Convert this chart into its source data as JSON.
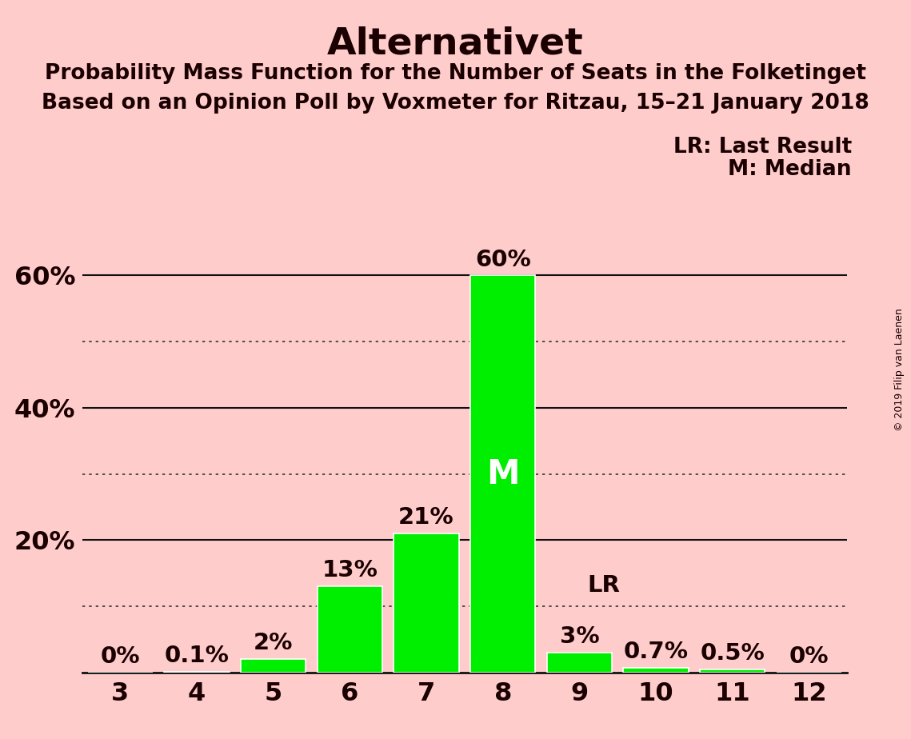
{
  "title": "Alternativet",
  "subtitle1": "Probability Mass Function for the Number of Seats in the Folketinget",
  "subtitle2": "Based on an Opinion Poll by Voxmeter for Ritzau, 15–21 January 2018",
  "copyright": "© 2019 Filip van Laenen",
  "categories": [
    3,
    4,
    5,
    6,
    7,
    8,
    9,
    10,
    11,
    12
  ],
  "values": [
    0.0,
    0.1,
    2.0,
    13.0,
    21.0,
    60.0,
    3.0,
    0.7,
    0.5,
    0.0
  ],
  "bar_color": "#00ee00",
  "background_color": "#ffcccc",
  "bar_edge_color": "#ffffff",
  "yticks": [
    0,
    20,
    40,
    60
  ],
  "ytick_labels": [
    "",
    "20%",
    "40%",
    "60%"
  ],
  "ylim": [
    0,
    67
  ],
  "xlim": [
    2.5,
    12.5
  ],
  "solid_yticks": [
    20,
    40,
    60
  ],
  "dotted_yticks": [
    10,
    30,
    50
  ],
  "median_seat": 8,
  "lr_seat": 9,
  "lr_label": "LR",
  "median_label": "M",
  "legend_lr": "LR: Last Result",
  "legend_m": "M: Median",
  "value_labels": [
    "0%",
    "0.1%",
    "2%",
    "13%",
    "21%",
    "60%",
    "3%",
    "0.7%",
    "0.5%",
    "0%"
  ],
  "title_fontsize": 34,
  "subtitle_fontsize": 19,
  "tick_fontsize": 23,
  "bar_label_fontsize": 21,
  "median_fontsize": 30,
  "legend_fontsize": 19,
  "lr_fontsize": 21
}
